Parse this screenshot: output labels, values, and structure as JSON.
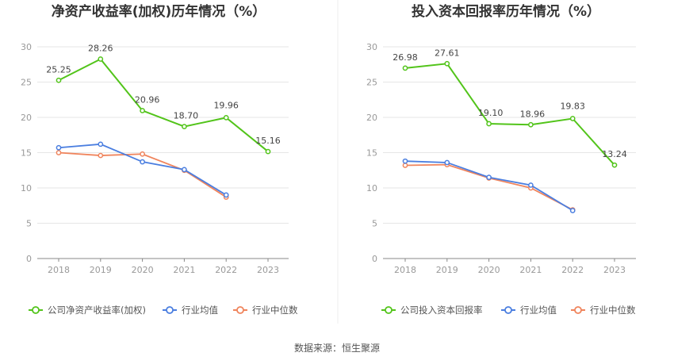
{
  "source_label": "数据来源：恒生聚源",
  "chart_data": [
    {
      "type": "line",
      "title": "净资产收益率(加权)历年情况（%）",
      "x": [
        "2018",
        "2019",
        "2020",
        "2021",
        "2022",
        "2023"
      ],
      "ylim": [
        0,
        30
      ],
      "yticks": [
        0,
        5,
        10,
        15,
        20,
        25,
        30
      ],
      "grid": true,
      "legend_position": "bottom",
      "series": [
        {
          "name": "公司净资产收益率(加权)",
          "color": "#52c41a",
          "values": [
            25.25,
            28.26,
            20.96,
            18.7,
            19.96,
            15.16
          ],
          "labels": [
            "25.25",
            "28.26",
            "20.96",
            "18.70",
            "19.96",
            "15.16"
          ]
        },
        {
          "name": "行业均值",
          "color": "#4a7ee0",
          "values": [
            15.7,
            16.2,
            13.7,
            12.6,
            9.0,
            null
          ]
        },
        {
          "name": "行业中位数",
          "color": "#f0845c",
          "values": [
            15.0,
            14.6,
            14.8,
            12.5,
            8.7,
            null
          ]
        }
      ]
    },
    {
      "type": "line",
      "title": "投入资本回报率历年情况（%）",
      "x": [
        "2018",
        "2019",
        "2020",
        "2021",
        "2022",
        "2023"
      ],
      "ylim": [
        0,
        30
      ],
      "yticks": [
        0,
        5,
        10,
        15,
        20,
        25,
        30
      ],
      "grid": true,
      "legend_position": "bottom",
      "series": [
        {
          "name": "公司投入资本回报率",
          "color": "#52c41a",
          "values": [
            26.98,
            27.61,
            19.1,
            18.96,
            19.83,
            13.24
          ],
          "labels": [
            "26.98",
            "27.61",
            "19.10",
            "18.96",
            "19.83",
            "13.24"
          ]
        },
        {
          "name": "行业均值",
          "color": "#4a7ee0",
          "values": [
            13.8,
            13.6,
            11.5,
            10.4,
            6.8,
            null
          ]
        },
        {
          "name": "行业中位数",
          "color": "#f0845c",
          "values": [
            13.2,
            13.3,
            11.4,
            10.0,
            6.9,
            null
          ]
        }
      ]
    }
  ]
}
